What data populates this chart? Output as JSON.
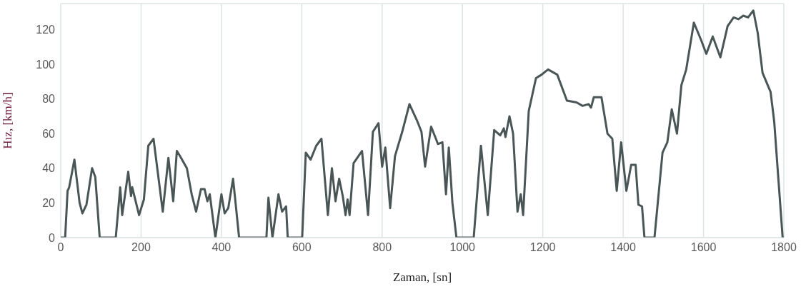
{
  "chart_data": {
    "type": "line",
    "xlabel": "Zaman, [sn]",
    "ylabel": "Hız, [km/h]",
    "x": [
      0,
      11,
      17,
      21,
      34,
      47,
      54,
      64,
      78,
      86,
      97,
      137,
      148,
      153,
      168,
      175,
      178,
      195,
      207,
      218,
      231,
      254,
      268,
      280,
      289,
      297,
      314,
      326,
      337,
      349,
      358,
      365,
      371,
      385,
      400,
      408,
      417,
      429,
      444,
      512,
      517,
      527,
      542,
      551,
      561,
      565,
      601,
      610,
      622,
      636,
      649,
      665,
      675,
      684,
      693,
      702,
      709,
      714,
      719,
      729,
      741,
      750,
      765,
      777,
      791,
      800,
      808,
      820,
      832,
      850,
      868,
      886,
      898,
      907,
      922,
      939,
      950,
      959,
      966,
      975,
      985,
      1028,
      1046,
      1063,
      1079,
      1094,
      1103,
      1107,
      1117,
      1126,
      1137,
      1145,
      1151,
      1165,
      1183,
      1197,
      1213,
      1236,
      1260,
      1284,
      1299,
      1314,
      1320,
      1327,
      1346,
      1361,
      1373,
      1384,
      1395,
      1408,
      1420,
      1431,
      1438,
      1447,
      1453,
      1478,
      1498,
      1510,
      1521,
      1534,
      1545,
      1557,
      1576,
      1594,
      1607,
      1623,
      1642,
      1660,
      1675,
      1687,
      1699,
      1711,
      1724,
      1735,
      1747,
      1767,
      1776,
      1797,
      1800
    ],
    "series": [
      {
        "color": "#4a5556",
        "values": [
          0,
          0,
          27,
          29,
          45,
          20,
          14,
          19,
          40,
          35,
          0,
          0,
          29,
          13,
          38,
          24,
          29,
          13,
          22,
          53,
          57,
          15,
          46,
          21,
          50,
          47,
          40,
          25,
          15,
          28,
          28,
          21,
          25,
          0,
          25,
          14,
          17,
          34,
          0,
          0,
          23,
          0,
          25,
          15,
          18,
          0,
          0,
          49,
          45,
          53,
          57,
          13,
          40,
          21,
          34,
          24,
          13,
          22,
          13,
          43,
          47,
          50,
          13,
          61,
          66,
          41,
          52,
          17,
          47,
          61,
          77,
          68,
          61,
          41,
          64,
          54,
          55,
          25,
          52,
          20,
          0,
          0,
          53,
          13,
          62,
          59,
          63,
          58,
          70,
          60,
          15,
          25,
          13,
          73,
          92,
          94,
          97,
          94,
          79,
          78,
          76,
          77,
          75,
          81,
          81,
          60,
          57,
          27,
          55,
          27,
          42,
          42,
          19,
          18,
          0,
          0,
          49,
          55,
          74,
          60,
          88,
          97,
          124,
          114,
          106,
          116,
          104,
          122,
          127,
          126,
          128,
          127,
          131,
          118,
          95,
          84,
          67,
          0,
          0
        ]
      }
    ],
    "xlim": [
      0,
      1800
    ],
    "xticks": [
      0,
      200,
      400,
      600,
      800,
      1000,
      1200,
      1400,
      1600,
      1800
    ],
    "ylim": [
      0,
      135
    ],
    "yticks": [
      0,
      20,
      40,
      60,
      80,
      100,
      120
    ],
    "grid": true,
    "legend": false,
    "marker": "none",
    "line_style": "solid"
  }
}
